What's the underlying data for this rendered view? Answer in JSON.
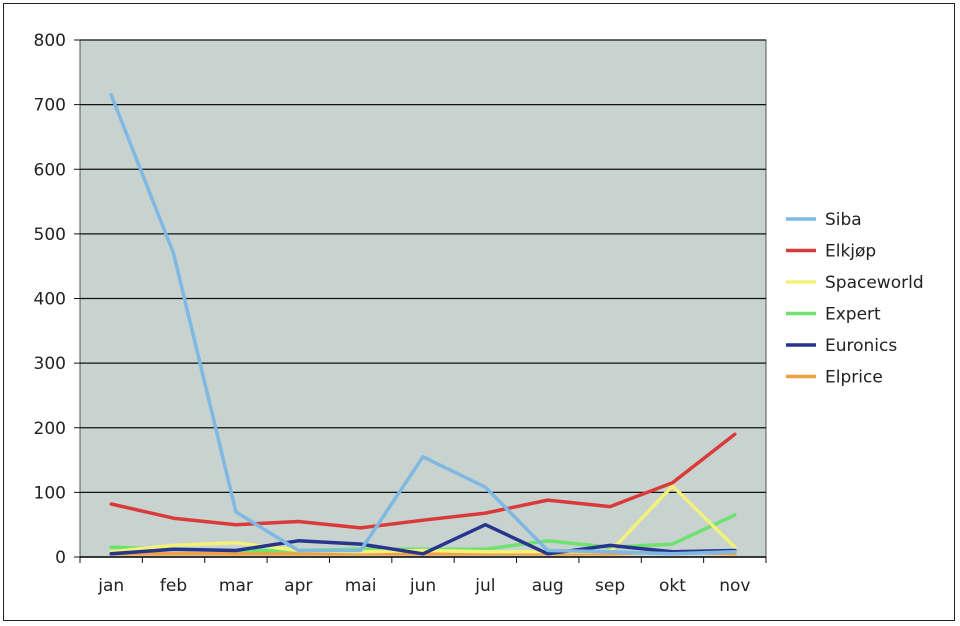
{
  "chart_data": {
    "type": "line",
    "categories": [
      "jan",
      "feb",
      "mar",
      "apr",
      "mai",
      "jun",
      "jul",
      "aug",
      "sep",
      "okt",
      "nov"
    ],
    "ylim": [
      0,
      800
    ],
    "yticks": [
      0,
      100,
      200,
      300,
      400,
      500,
      600,
      700,
      800
    ],
    "grid": true,
    "legend_position": "right",
    "plot_background": "#c8d3cf",
    "series": [
      {
        "name": "Siba",
        "color": "#7fb8e2",
        "values": [
          715,
          470,
          70,
          10,
          10,
          155,
          108,
          10,
          8,
          5,
          8
        ]
      },
      {
        "name": "Elkjøp",
        "color": "#d93a3a",
        "values": [
          82,
          60,
          50,
          55,
          45,
          57,
          68,
          88,
          78,
          115,
          190
        ]
      },
      {
        "name": "Spaceworld",
        "color": "#f2f27a",
        "values": [
          8,
          18,
          22,
          10,
          8,
          10,
          8,
          8,
          8,
          110,
          15
        ]
      },
      {
        "name": "Expert",
        "color": "#6ee26e",
        "values": [
          15,
          12,
          10,
          10,
          12,
          12,
          12,
          25,
          15,
          20,
          65
        ]
      },
      {
        "name": "Euronics",
        "color": "#27358f",
        "values": [
          5,
          12,
          10,
          25,
          20,
          5,
          50,
          5,
          18,
          8,
          10
        ]
      },
      {
        "name": "Elprice",
        "color": "#f0a040",
        "values": [
          5,
          5,
          5,
          5,
          5,
          5,
          5,
          5,
          5,
          8,
          5
        ]
      }
    ]
  }
}
